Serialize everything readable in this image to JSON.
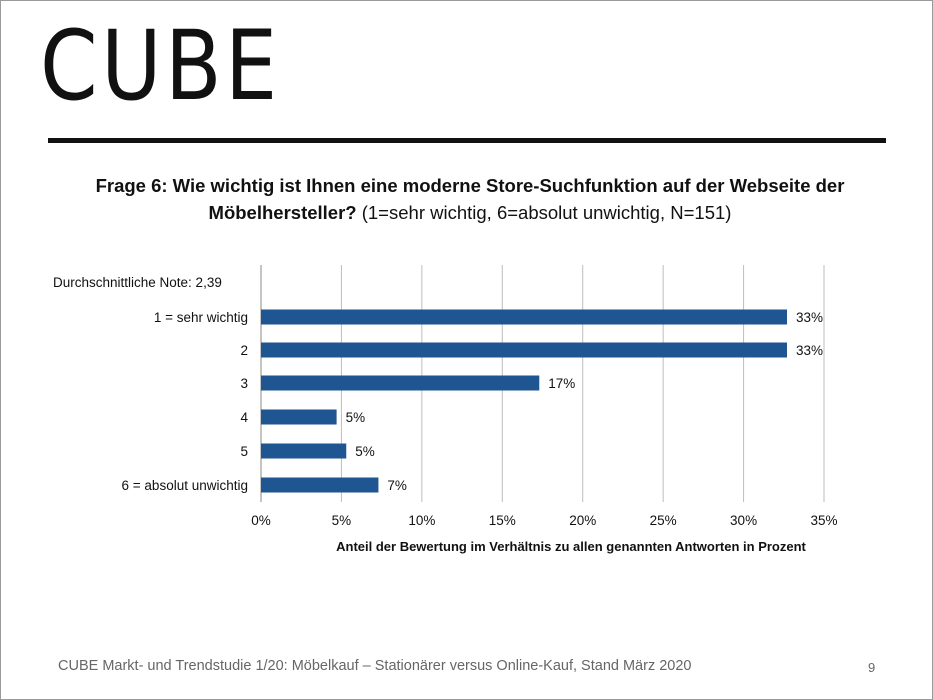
{
  "logo": "CUBE",
  "title": {
    "bold": "Frage 6: Wie wichtig ist Ihnen eine moderne Store-Suchfunktion auf der Webseite der Möbelhersteller?",
    "normal": "(1=sehr wichtig, 6=absolut unwichtig, N=151)"
  },
  "average_note": "Durchschnittliche Note: 2,39",
  "footer": "CUBE Markt- und Trendstudie 1/20: Möbelkauf – Stationärer versus Online-Kauf, Stand März 2020",
  "page_number": "9",
  "colors": {
    "bar": "#1f5591",
    "grid": "#bdbdbd",
    "text": "#111111"
  },
  "chart_data": {
    "type": "bar",
    "orientation": "horizontal",
    "categories": [
      "1 = sehr wichtig",
      "2",
      "3",
      "4",
      "5",
      "6 = absolut unwichtig"
    ],
    "values": [
      32.7,
      32.7,
      17.3,
      4.7,
      5.3,
      7.3
    ],
    "value_labels": [
      "33%",
      "33%",
      "17%",
      "5%",
      "5%",
      "7%"
    ],
    "xlabel": "Anteil der Bewertung im Verhältnis zu allen genannten Antworten in Prozent",
    "xlim": [
      0,
      35
    ],
    "x_ticks": [
      "0%",
      "5%",
      "10%",
      "15%",
      "20%",
      "25%",
      "30%",
      "35%"
    ],
    "grid": true,
    "legend": "none"
  }
}
